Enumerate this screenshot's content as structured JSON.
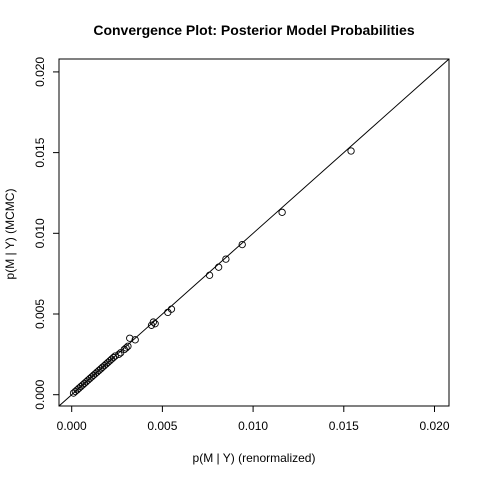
{
  "chart_data": {
    "type": "scatter",
    "title": "Convergence Plot: Posterior Model Probabilities",
    "xlabel": "p(M | Y) (renormalized)",
    "ylabel": "p(M | Y) (MCMC)",
    "xlim": [
      -0.0007,
      0.0208
    ],
    "ylim": [
      -0.0007,
      0.0208
    ],
    "xticks": [
      {
        "value": 0.0,
        "label": "0.000"
      },
      {
        "value": 0.005,
        "label": "0.005"
      },
      {
        "value": 0.01,
        "label": "0.010"
      },
      {
        "value": 0.015,
        "label": "0.015"
      },
      {
        "value": 0.02,
        "label": "0.020"
      }
    ],
    "yticks": [
      {
        "value": 0.0,
        "label": "0.000"
      },
      {
        "value": 0.005,
        "label": "0.005"
      },
      {
        "value": 0.01,
        "label": "0.010"
      },
      {
        "value": 0.015,
        "label": "0.015"
      },
      {
        "value": 0.02,
        "label": "0.020"
      }
    ],
    "reference_line": {
      "intercept": 0,
      "slope": 1
    },
    "grid": false,
    "legend": "none",
    "marker": "open-circle",
    "x": [
      0.0001,
      0.0002,
      0.0003,
      0.0004,
      0.0005,
      0.0006,
      0.0007,
      0.0008,
      0.0009,
      0.001,
      0.0011,
      0.0012,
      0.0013,
      0.0014,
      0.0015,
      0.0016,
      0.0017,
      0.0018,
      0.0019,
      0.002,
      0.0021,
      0.0022,
      0.0023,
      0.0024,
      0.0026,
      0.0027,
      0.0029,
      0.003,
      0.0031,
      0.0032,
      0.0035,
      0.0044,
      0.0045,
      0.0046,
      0.0053,
      0.0055,
      0.0076,
      0.0081,
      0.0085,
      0.0094,
      0.0116,
      0.0154
    ],
    "y": [
      0.0001,
      0.0002,
      0.0003,
      0.0004,
      0.0005,
      0.0006,
      0.0007,
      0.0008,
      0.0009,
      0.001,
      0.0011,
      0.0012,
      0.0013,
      0.0014,
      0.0015,
      0.0016,
      0.0017,
      0.0018,
      0.0019,
      0.002,
      0.0021,
      0.0022,
      0.0023,
      0.0024,
      0.0025,
      0.0026,
      0.0028,
      0.0029,
      0.003,
      0.0035,
      0.0034,
      0.0043,
      0.0045,
      0.0044,
      0.0051,
      0.0053,
      0.0074,
      0.0079,
      0.0084,
      0.0093,
      0.0113,
      0.0151
    ]
  }
}
